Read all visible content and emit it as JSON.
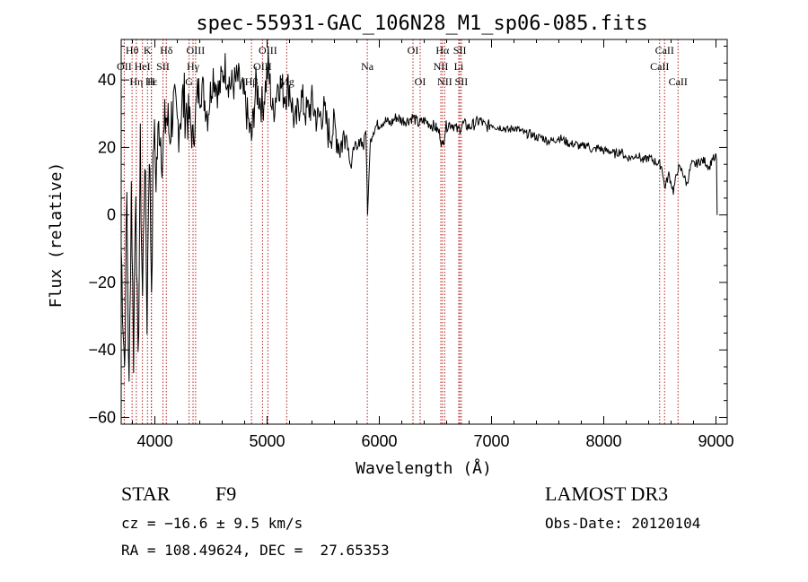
{
  "chart_data": {
    "type": "line",
    "title": "spec-55931-GAC_106N28_M1_sp06-085.fits",
    "xlabel": "Wavelength (Å)",
    "ylabel": "Flux (relative)",
    "xlim": [
      3700,
      9100
    ],
    "ylim": [
      -62,
      52
    ],
    "x_ticks": [
      4000,
      5000,
      6000,
      7000,
      8000,
      9000
    ],
    "y_ticks": [
      -60,
      -40,
      -20,
      0,
      20,
      40
    ],
    "line_color": "#000000",
    "marker_color": "#b22222",
    "spectrum": {
      "x": [
        3700,
        3730,
        3750,
        3770,
        3790,
        3810,
        3830,
        3850,
        3870,
        3890,
        3910,
        3930,
        3950,
        3970,
        3990,
        4010,
        4040,
        4070,
        4100,
        4130,
        4160,
        4200,
        4250,
        4300,
        4340,
        4380,
        4420,
        4470,
        4520,
        4570,
        4620,
        4680,
        4740,
        4800,
        4861,
        4900,
        4960,
        5010,
        5050,
        5100,
        5150,
        5200,
        5250,
        5300,
        5350,
        5400,
        5450,
        5500,
        5550,
        5600,
        5650,
        5700,
        5750,
        5780,
        5800,
        5830,
        5860,
        5880,
        5895,
        5920,
        5935,
        5960,
        6000,
        6050,
        6100,
        6150,
        6200,
        6250,
        6300,
        6350,
        6400,
        6450,
        6500,
        6540,
        6563,
        6590,
        6620,
        6650,
        6700,
        6750,
        6800,
        6850,
        6900,
        6950,
        7000,
        7050,
        7100,
        7150,
        7200,
        7250,
        7300,
        7350,
        7400,
        7450,
        7500,
        7550,
        7600,
        7650,
        7700,
        7750,
        7800,
        7850,
        7900,
        7950,
        8000,
        8050,
        8100,
        8150,
        8200,
        8250,
        8300,
        8350,
        8400,
        8450,
        8498,
        8520,
        8542,
        8580,
        8620,
        8662,
        8700,
        8740,
        8780,
        8820,
        8860,
        8900,
        8940,
        8970,
        8990,
        9000,
        9010
      ],
      "flux": [
        -10,
        -45,
        5,
        -55,
        10,
        -40,
        12,
        -50,
        18,
        -25,
        20,
        -30,
        22,
        -20,
        25,
        12,
        28,
        18,
        30,
        24,
        32,
        26,
        34,
        30,
        22,
        36,
        38,
        30,
        42,
        36,
        44,
        38,
        40,
        34,
        22,
        38,
        32,
        44,
        30,
        40,
        36,
        38,
        26,
        35,
        30,
        33,
        28,
        31,
        24,
        26,
        20,
        25,
        14,
        22,
        18,
        23,
        20,
        26,
        0,
        22,
        24,
        26,
        27,
        28,
        27,
        29,
        28,
        28,
        29,
        27,
        28,
        27,
        26,
        24,
        20,
        26,
        27,
        27,
        25,
        27,
        26,
        27,
        28,
        26,
        27,
        26,
        26,
        25,
        26,
        25,
        24,
        24,
        23,
        23,
        22,
        22,
        23,
        22,
        21,
        21,
        20,
        21,
        19,
        20,
        19,
        19,
        18,
        19,
        17,
        17,
        18,
        16,
        17,
        16,
        15,
        14,
        8,
        12,
        7,
        14,
        13,
        9,
        15,
        15,
        16,
        16,
        14,
        17,
        16,
        18,
        15,
        9,
        0
      ]
    },
    "lines": [
      {
        "label": "Hθ",
        "wave": 3797,
        "row": 1
      },
      {
        "label": "OII",
        "wave": 3727,
        "row": 2
      },
      {
        "label": "Hη",
        "wave": 3835,
        "row": 3
      },
      {
        "label": "K",
        "wave": 3934,
        "row": 1
      },
      {
        "label": "HeI",
        "wave": 3889,
        "row": 2
      },
      {
        "label": "Hε",
        "wave": 3970,
        "row": 3
      },
      {
        "label": "Hδ",
        "wave": 4102,
        "row": 1
      },
      {
        "label": "SII",
        "wave": 4072,
        "row": 2
      },
      {
        "label": "H",
        "wave": 3968,
        "row": 3
      },
      {
        "label": "OIII",
        "wave": 4363,
        "row": 1
      },
      {
        "label": "Hγ",
        "wave": 4340,
        "row": 2
      },
      {
        "label": "G",
        "wave": 4305,
        "row": 3
      },
      {
        "label": "OIII",
        "wave": 5007,
        "row": 1
      },
      {
        "label": "OIII",
        "wave": 4959,
        "row": 2
      },
      {
        "label": "Hβ",
        "wave": 4861,
        "row": 3
      },
      {
        "label": "Mg",
        "wave": 5175,
        "row": 3
      },
      {
        "label": "Na",
        "wave": 5893,
        "row": 2
      },
      {
        "label": "OI",
        "wave": 6300,
        "row": 1
      },
      {
        "label": "OI",
        "wave": 6364,
        "row": 3
      },
      {
        "label": "Hα",
        "wave": 6563,
        "row": 1
      },
      {
        "label": "NII",
        "wave": 6548,
        "row": 2
      },
      {
        "label": "NII",
        "wave": 6583,
        "row": 3
      },
      {
        "label": "SII",
        "wave": 6717,
        "row": 1
      },
      {
        "label": "Li",
        "wave": 6708,
        "row": 2
      },
      {
        "label": "SII",
        "wave": 6731,
        "row": 3
      },
      {
        "label": "CaII",
        "wave": 8542,
        "row": 1
      },
      {
        "label": "CaII",
        "wave": 8498,
        "row": 2
      },
      {
        "label": "CaII",
        "wave": 8662,
        "row": 3
      }
    ]
  },
  "info": {
    "object_class": "STAR",
    "subclass": "F9",
    "survey": "LAMOST DR3",
    "cz": "cz = −16.6 ± 9.5 km/s",
    "obs_date": "Obs-Date: 20120104",
    "radec": "RA = 108.49624, DEC =  27.65353"
  }
}
